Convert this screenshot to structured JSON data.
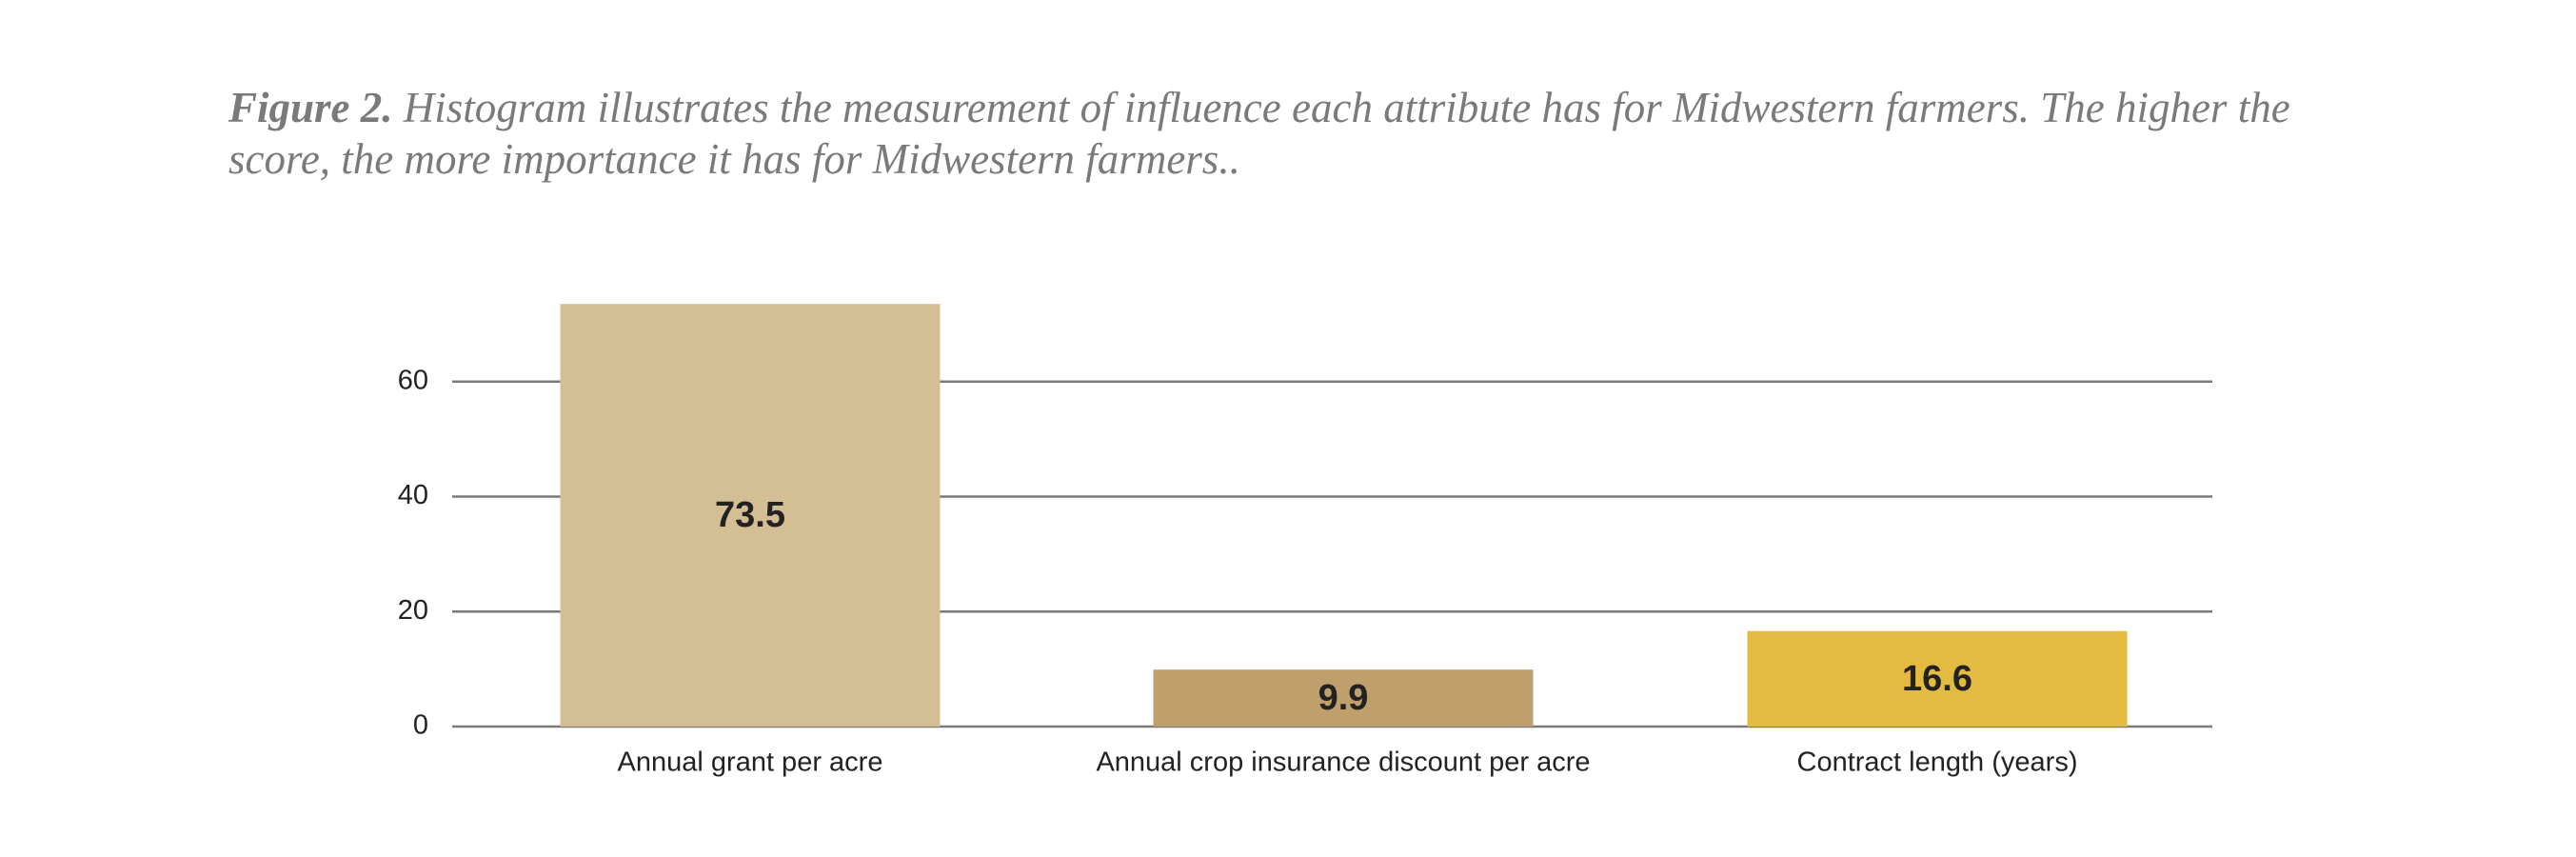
{
  "chart_data": {
    "type": "bar",
    "figure_label": "Figure 2.",
    "title": "Histogram illustrates the measurement of influence each attribute has for Midwestern farmers. The higher the score, the more importance it has for Midwestern farmers..",
    "categories": [
      "Annual grant per acre",
      "Annual crop insurance discount per acre",
      "Contract length (years)"
    ],
    "values": [
      73.5,
      9.9,
      16.6
    ],
    "colors": [
      "#d4be93",
      "#bf9f6b",
      "#e4bb41"
    ],
    "ylim": [
      0,
      80
    ],
    "yticks": [
      0,
      20,
      40,
      60
    ],
    "grid": true
  }
}
